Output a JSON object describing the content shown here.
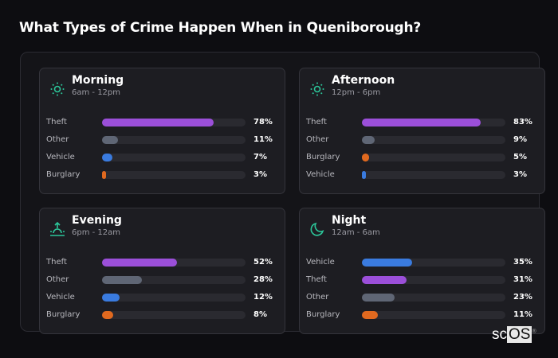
{
  "title": "What Types of Crime Happen When in Queniborough?",
  "colors": {
    "Theft": "#9b4fd9",
    "Other": "#5f6675",
    "Vehicle": "#3a7bdf",
    "Burglary": "#e0691f",
    "accent": "#2cc79a"
  },
  "cards": [
    {
      "name": "Morning",
      "range": "6am - 12pm",
      "icon": "sun-icon",
      "rows": [
        {
          "label": "Theft",
          "value": 78,
          "text": "78%"
        },
        {
          "label": "Other",
          "value": 11,
          "text": "11%"
        },
        {
          "label": "Vehicle",
          "value": 7,
          "text": "7%"
        },
        {
          "label": "Burglary",
          "value": 3,
          "text": "3%"
        }
      ]
    },
    {
      "name": "Afternoon",
      "range": "12pm - 6pm",
      "icon": "sun-icon",
      "rows": [
        {
          "label": "Theft",
          "value": 83,
          "text": "83%"
        },
        {
          "label": "Other",
          "value": 9,
          "text": "9%"
        },
        {
          "label": "Burglary",
          "value": 5,
          "text": "5%"
        },
        {
          "label": "Vehicle",
          "value": 3,
          "text": "3%"
        }
      ]
    },
    {
      "name": "Evening",
      "range": "6pm - 12am",
      "icon": "sunset-icon",
      "rows": [
        {
          "label": "Theft",
          "value": 52,
          "text": "52%"
        },
        {
          "label": "Other",
          "value": 28,
          "text": "28%"
        },
        {
          "label": "Vehicle",
          "value": 12,
          "text": "12%"
        },
        {
          "label": "Burglary",
          "value": 8,
          "text": "8%"
        }
      ]
    },
    {
      "name": "Night",
      "range": "12am - 6am",
      "icon": "moon-icon",
      "rows": [
        {
          "label": "Vehicle",
          "value": 35,
          "text": "35%"
        },
        {
          "label": "Theft",
          "value": 31,
          "text": "31%"
        },
        {
          "label": "Other",
          "value": 23,
          "text": "23%"
        },
        {
          "label": "Burglary",
          "value": 11,
          "text": "11%"
        }
      ]
    }
  ],
  "logo": {
    "sc": "sc",
    "os": "OS",
    "mark": "®"
  }
}
